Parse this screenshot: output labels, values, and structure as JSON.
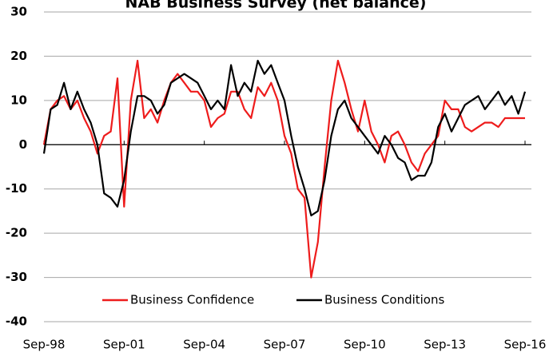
{
  "chart_data": {
    "type": "line",
    "title": "NAB Business Survey (net balance)",
    "x": [
      1998.75,
      1999,
      1999.25,
      1999.5,
      1999.75,
      2000,
      2000.25,
      2000.5,
      2000.75,
      2001,
      2001.25,
      2001.5,
      2001.75,
      2002,
      2002.25,
      2002.5,
      2002.75,
      2003,
      2003.25,
      2003.5,
      2003.75,
      2004,
      2004.25,
      2004.5,
      2004.75,
      2005,
      2005.25,
      2005.5,
      2005.75,
      2006,
      2006.25,
      2006.5,
      2006.75,
      2007,
      2007.25,
      2007.5,
      2007.75,
      2008,
      2008.25,
      2008.5,
      2008.75,
      2009,
      2009.25,
      2009.5,
      2009.75,
      2010,
      2010.25,
      2010.5,
      2010.75,
      2011,
      2011.25,
      2011.5,
      2011.75,
      2012,
      2012.25,
      2012.5,
      2012.75,
      2013,
      2013.25,
      2013.5,
      2013.75,
      2014,
      2014.25,
      2014.5,
      2014.75,
      2015,
      2015.25,
      2015.5,
      2015.75,
      2016,
      2016.25,
      2016.5,
      2016.75
    ],
    "series": [
      {
        "name": "Business Confidence",
        "color": "#ee1c1c",
        "values": [
          0,
          8,
          10,
          11,
          8,
          10,
          6,
          3,
          -2,
          2,
          3,
          15,
          -14,
          10,
          19,
          6,
          8,
          5,
          10,
          14,
          16,
          14,
          12,
          12,
          10,
          4,
          6,
          7,
          12,
          12,
          8,
          6,
          13,
          11,
          14,
          10,
          2,
          -2,
          -10,
          -12,
          -30,
          -22,
          -5,
          10,
          19,
          14,
          8,
          3,
          10,
          3,
          0,
          -4,
          2,
          3,
          0,
          -4,
          -6,
          -2,
          0,
          2,
          10,
          8,
          8,
          4,
          3,
          4,
          5,
          5,
          4,
          6,
          6,
          6,
          6
        ]
      },
      {
        "name": "Business Conditions",
        "color": "#000000",
        "values": [
          -2,
          8,
          9,
          14,
          8,
          12,
          8,
          5,
          0,
          -11,
          -12,
          -14,
          -8,
          3,
          11,
          11,
          10,
          7,
          9,
          14,
          15,
          16,
          15,
          14,
          11,
          8,
          10,
          8,
          18,
          11,
          14,
          12,
          19,
          16,
          18,
          14,
          10,
          2,
          -5,
          -10,
          -16,
          -15,
          -8,
          2,
          8,
          10,
          6,
          4,
          2,
          0,
          -2,
          2,
          0,
          -3,
          -4,
          -8,
          -7,
          -7,
          -4,
          4,
          7,
          3,
          6,
          9,
          10,
          11,
          8,
          10,
          12,
          9,
          11,
          7,
          12
        ]
      }
    ],
    "xlim": [
      1998.75,
      2016.75
    ],
    "xticks": [
      {
        "value": 1998.75,
        "label": "Sep-98"
      },
      {
        "value": 2001.75,
        "label": "Sep-01"
      },
      {
        "value": 2004.75,
        "label": "Sep-04"
      },
      {
        "value": 2007.75,
        "label": "Sep-07"
      },
      {
        "value": 2010.75,
        "label": "Sep-10"
      },
      {
        "value": 2013.75,
        "label": "Sep-13"
      },
      {
        "value": 2016.75,
        "label": "Sep-16"
      }
    ],
    "ylim": [
      -40,
      30
    ],
    "yticks": [
      -40,
      -30,
      -20,
      -10,
      0,
      10,
      20,
      30
    ],
    "grid": true
  }
}
